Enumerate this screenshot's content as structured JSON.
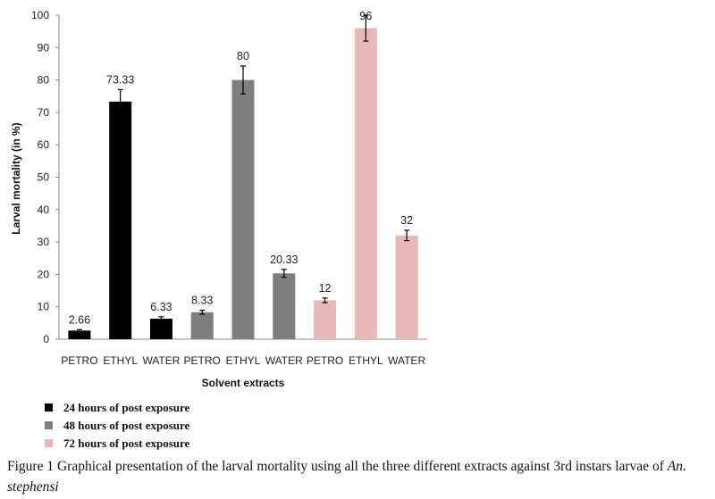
{
  "chart_data": {
    "type": "bar",
    "title": "",
    "xlabel": "Solvent extracts",
    "ylabel": "Larval mortality (in %)",
    "ylim": [
      0,
      100
    ],
    "yticks": [
      0,
      10,
      20,
      30,
      40,
      50,
      60,
      70,
      80,
      90,
      100
    ],
    "grid": false,
    "legend_position": "bottom-left",
    "categories": [
      "PETRO",
      "ETHYL",
      "WATER",
      "PETRO",
      "ETHYL",
      "WATER",
      "PETRO",
      "ETHYL",
      "WATER"
    ],
    "bars": [
      {
        "category": "PETRO",
        "series": 0,
        "value": 2.66,
        "label": "2.66",
        "error": 0.3
      },
      {
        "category": "ETHYL",
        "series": 0,
        "value": 73.33,
        "label": "73.33",
        "error": 3.7
      },
      {
        "category": "WATER",
        "series": 0,
        "value": 6.33,
        "label": "6.33",
        "error": 0.6
      },
      {
        "category": "PETRO",
        "series": 1,
        "value": 8.33,
        "label": "8.33",
        "error": 0.6
      },
      {
        "category": "ETHYL",
        "series": 1,
        "value": 80,
        "label": "80",
        "error": 4.3
      },
      {
        "category": "WATER",
        "series": 1,
        "value": 20.33,
        "label": "20.33",
        "error": 1.2
      },
      {
        "category": "PETRO",
        "series": 2,
        "value": 12,
        "label": "12",
        "error": 0.7
      },
      {
        "category": "ETHYL",
        "series": 2,
        "value": 96,
        "label": "96",
        "error": 4.0
      },
      {
        "category": "WATER",
        "series": 2,
        "value": 32,
        "label": "32",
        "error": 1.6
      }
    ],
    "series": [
      {
        "name": "24 hours of post exposure",
        "color": "#000000"
      },
      {
        "name": "48 hours of post exposure",
        "color": "#7f7f7f"
      },
      {
        "name": "72 hours of post exposure",
        "color": "#e6b8b8"
      }
    ]
  },
  "caption": {
    "text": "Figure 1 Graphical presentation of the larval mortality using all the three different extracts against 3rd instars larvae of ",
    "species": "An. stephensi"
  }
}
